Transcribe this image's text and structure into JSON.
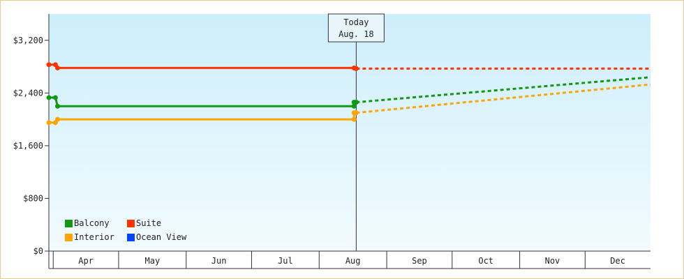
{
  "chart_data": {
    "type": "line",
    "title": "",
    "xlabel": "",
    "ylabel": "",
    "ylim": [
      0,
      3600
    ],
    "y_ticks": [
      {
        "value": 0,
        "label": "$0"
      },
      {
        "value": 800,
        "label": "$800"
      },
      {
        "value": 1600,
        "label": "$1,600"
      },
      {
        "value": 2400,
        "label": "$2,400"
      },
      {
        "value": 3200,
        "label": "$3,200"
      }
    ],
    "x_range": [
      "2024-03-30",
      "2024-12-31"
    ],
    "months": [
      {
        "label": "Apr",
        "start": "2024-04-01",
        "end": "2024-05-01"
      },
      {
        "label": "May",
        "start": "2024-05-01",
        "end": "2024-06-01"
      },
      {
        "label": "Jun",
        "start": "2024-06-01",
        "end": "2024-07-01"
      },
      {
        "label": "Jul",
        "start": "2024-07-01",
        "end": "2024-08-01"
      },
      {
        "label": "Aug",
        "start": "2024-08-01",
        "end": "2024-09-01"
      },
      {
        "label": "Sep",
        "start": "2024-09-01",
        "end": "2024-10-01"
      },
      {
        "label": "Oct",
        "start": "2024-10-01",
        "end": "2024-11-01"
      },
      {
        "label": "Nov",
        "start": "2024-11-01",
        "end": "2024-12-01"
      },
      {
        "label": "Dec",
        "start": "2024-12-01",
        "end": "2024-12-31"
      }
    ],
    "today": {
      "label_line1": "Today",
      "label_line2": "Aug. 18",
      "date": "2024-08-18"
    },
    "series": [
      {
        "name": "Suite",
        "color": "#ff3300",
        "points": [
          [
            "2024-03-30",
            2830
          ],
          [
            "2024-04-02",
            2830
          ],
          [
            "2024-04-03",
            2780
          ],
          [
            "2024-08-17",
            2780
          ],
          [
            "2024-08-18",
            2770
          ]
        ],
        "markers": [
          "2024-03-30",
          "2024-04-02",
          "2024-04-03",
          "2024-08-17",
          "2024-08-18"
        ],
        "projection": [
          [
            "2024-08-18",
            2770
          ],
          [
            "2024-12-31",
            2770
          ]
        ]
      },
      {
        "name": "Balcony",
        "color": "#119911",
        "points": [
          [
            "2024-03-30",
            2330
          ],
          [
            "2024-04-02",
            2330
          ],
          [
            "2024-04-03",
            2200
          ],
          [
            "2024-08-17",
            2200
          ],
          [
            "2024-08-17",
            2260
          ],
          [
            "2024-08-18",
            2260
          ]
        ],
        "markers": [
          "2024-03-30",
          "2024-04-02",
          "2024-04-03",
          "2024-08-17",
          "2024-08-17b",
          "2024-08-18"
        ],
        "projection": [
          [
            "2024-08-18",
            2260
          ],
          [
            "2024-12-31",
            2640
          ]
        ]
      },
      {
        "name": "Interior",
        "color": "#ffa500",
        "points": [
          [
            "2024-03-30",
            1950
          ],
          [
            "2024-04-02",
            1950
          ],
          [
            "2024-04-03",
            2000
          ],
          [
            "2024-08-17",
            2000
          ],
          [
            "2024-08-17",
            2100
          ],
          [
            "2024-08-18",
            2100
          ]
        ],
        "markers": [
          "2024-03-30",
          "2024-04-02",
          "2024-04-03",
          "2024-08-17",
          "2024-08-17b",
          "2024-08-18"
        ],
        "projection": [
          [
            "2024-08-18",
            2100
          ],
          [
            "2024-12-31",
            2530
          ]
        ]
      },
      {
        "name": "Ocean View",
        "color": "#0044ff",
        "points": [],
        "markers": [],
        "projection": []
      }
    ],
    "legend": [
      {
        "name": "Balcony",
        "color": "#119911"
      },
      {
        "name": "Suite",
        "color": "#ff3300"
      },
      {
        "name": "Interior",
        "color": "#ffa500"
      },
      {
        "name": "Ocean View",
        "color": "#0044ff"
      }
    ],
    "legend_placement": "bottom-left",
    "grid": false,
    "background_gradient": [
      "#cdeefb",
      "#f2fbfe"
    ]
  }
}
